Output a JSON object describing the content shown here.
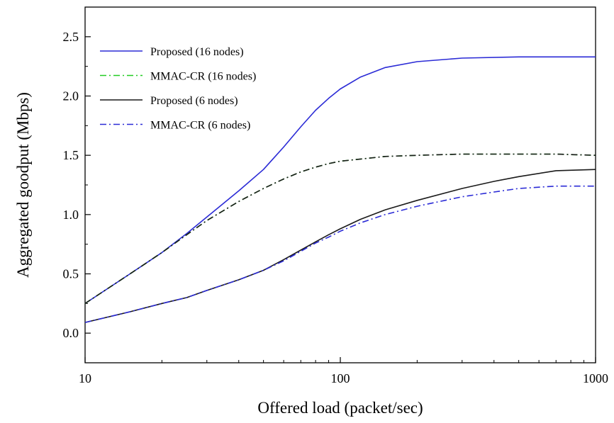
{
  "chart_data": {
    "type": "line",
    "title": "",
    "xlabel": "Offered load (packet/sec)",
    "ylabel": "Aggregated goodput (Mbps)",
    "xscale": "log",
    "xlim": [
      10,
      1000
    ],
    "ylim": [
      -0.25,
      2.75
    ],
    "xticks": [
      10,
      100,
      1000
    ],
    "xtick_labels": [
      "10",
      "100",
      "1000"
    ],
    "yticks": [
      0.0,
      0.5,
      1.0,
      1.5,
      2.0,
      2.5
    ],
    "ytick_labels": [
      "0.0",
      "0.5",
      "1.0",
      "1.5",
      "2.0",
      "2.5"
    ],
    "grid": false,
    "legend_position": "top-left",
    "series": [
      {
        "name": "Proposed (16 nodes)",
        "color": "#2b2bd6",
        "dash": "solid",
        "x": [
          10,
          15,
          20,
          25,
          30,
          40,
          50,
          60,
          70,
          80,
          90,
          100,
          120,
          150,
          200,
          300,
          500,
          700,
          1000
        ],
        "y": [
          0.25,
          0.5,
          0.68,
          0.84,
          0.98,
          1.2,
          1.38,
          1.57,
          1.74,
          1.88,
          1.98,
          2.06,
          2.16,
          2.24,
          2.29,
          2.32,
          2.33,
          2.33,
          2.33
        ]
      },
      {
        "name": "MMAC-CR (16 nodes)",
        "color": "#22cc22",
        "dash": "dashdot",
        "x": [
          10,
          15,
          20,
          25,
          30,
          40,
          50,
          60,
          70,
          80,
          90,
          100,
          150,
          200,
          300,
          500,
          700,
          1000
        ],
        "y": [
          0.25,
          0.5,
          0.68,
          0.83,
          0.95,
          1.11,
          1.22,
          1.3,
          1.36,
          1.4,
          1.43,
          1.45,
          1.49,
          1.5,
          1.51,
          1.51,
          1.51,
          1.5
        ]
      },
      {
        "name": "Proposed (6 nodes)",
        "color": "#1a1a1a",
        "dash": "solid",
        "x": [
          10,
          15,
          20,
          25,
          30,
          40,
          50,
          60,
          70,
          80,
          90,
          100,
          120,
          150,
          200,
          300,
          400,
          500,
          700,
          1000
        ],
        "y": [
          0.09,
          0.18,
          0.25,
          0.3,
          0.36,
          0.45,
          0.53,
          0.62,
          0.7,
          0.77,
          0.83,
          0.88,
          0.96,
          1.04,
          1.12,
          1.22,
          1.28,
          1.32,
          1.37,
          1.38
        ]
      },
      {
        "name": "MMAC-CR (6 nodes)",
        "color": "#2b2bd6",
        "dash": "dashdot",
        "x": [
          10,
          15,
          20,
          25,
          30,
          40,
          50,
          60,
          70,
          80,
          90,
          100,
          120,
          150,
          200,
          300,
          400,
          500,
          700,
          1000
        ],
        "y": [
          0.09,
          0.18,
          0.25,
          0.3,
          0.36,
          0.45,
          0.53,
          0.61,
          0.69,
          0.76,
          0.81,
          0.86,
          0.93,
          1.0,
          1.07,
          1.15,
          1.19,
          1.22,
          1.24,
          1.24
        ]
      }
    ],
    "overlay_series": {
      "color": "#1a1a1a",
      "dash": "dashdot",
      "x": [
        10,
        15,
        20,
        25,
        30,
        40,
        50,
        60,
        70,
        80,
        90,
        100,
        150,
        200,
        300,
        500,
        700,
        1000
      ],
      "y": [
        0.25,
        0.5,
        0.68,
        0.83,
        0.95,
        1.11,
        1.22,
        1.3,
        1.36,
        1.4,
        1.43,
        1.45,
        1.49,
        1.5,
        1.51,
        1.51,
        1.51,
        1.5
      ]
    }
  }
}
